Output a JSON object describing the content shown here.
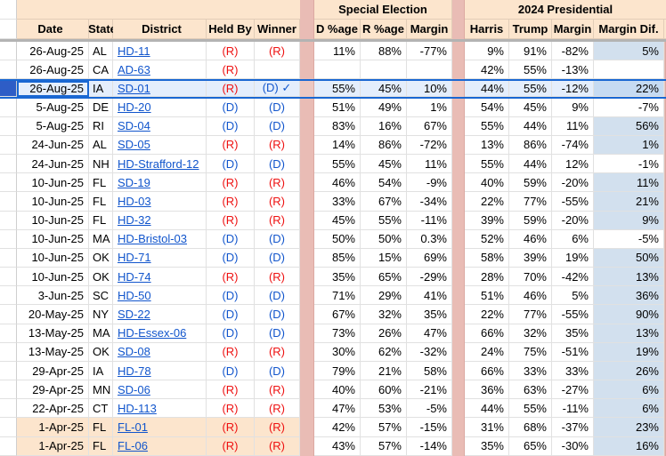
{
  "table": {
    "group_headers": {
      "special": "Special Election",
      "presidential": "2024 Presidential"
    },
    "columns": [
      "Date",
      "State",
      "District",
      "Held By",
      "Winner",
      "D %age",
      "R %age",
      "Margin",
      "Harris",
      "Trump",
      "Margin",
      "Margin Dif."
    ],
    "rows": [
      {
        "date": "26-Aug-25",
        "state": "AL",
        "district": "HD-11",
        "held": "(R)",
        "held_party": "R",
        "winner": "(R)",
        "winner_party": "R",
        "d": "11%",
        "r": "88%",
        "margin": "-77%",
        "harris": "9%",
        "trump": "91%",
        "pmargin": "-82%",
        "dif": "5%",
        "dif_hl": true,
        "bg": "white",
        "selected": false
      },
      {
        "date": "26-Aug-25",
        "state": "CA",
        "district": "AD-63",
        "held": "(R)",
        "held_party": "R",
        "winner": "",
        "winner_party": "",
        "d": "",
        "r": "",
        "margin": "",
        "harris": "42%",
        "trump": "55%",
        "pmargin": "-13%",
        "dif": "",
        "dif_hl": false,
        "bg": "white",
        "selected": false
      },
      {
        "date": "26-Aug-25",
        "state": "IA",
        "district": "SD-01",
        "held": "(R)",
        "held_party": "R",
        "winner": "(D) ✓",
        "winner_party": "D",
        "d": "55%",
        "r": "45%",
        "margin": "10%",
        "harris": "44%",
        "trump": "55%",
        "pmargin": "-12%",
        "dif": "22%",
        "dif_hl": true,
        "bg": "white",
        "selected": true
      },
      {
        "date": "5-Aug-25",
        "state": "DE",
        "district": "HD-20",
        "held": "(D)",
        "held_party": "D",
        "winner": "(D)",
        "winner_party": "D",
        "d": "51%",
        "r": "49%",
        "margin": "1%",
        "harris": "54%",
        "trump": "45%",
        "pmargin": "9%",
        "dif": "-7%",
        "dif_hl": false,
        "bg": "white",
        "selected": false
      },
      {
        "date": "5-Aug-25",
        "state": "RI",
        "district": "SD-04",
        "held": "(D)",
        "held_party": "D",
        "winner": "(D)",
        "winner_party": "D",
        "d": "83%",
        "r": "16%",
        "margin": "67%",
        "harris": "55%",
        "trump": "44%",
        "pmargin": "11%",
        "dif": "56%",
        "dif_hl": true,
        "bg": "white",
        "selected": false
      },
      {
        "date": "24-Jun-25",
        "state": "AL",
        "district": "SD-05",
        "held": "(R)",
        "held_party": "R",
        "winner": "(R)",
        "winner_party": "R",
        "d": "14%",
        "r": "86%",
        "margin": "-72%",
        "harris": "13%",
        "trump": "86%",
        "pmargin": "-74%",
        "dif": "1%",
        "dif_hl": true,
        "bg": "white",
        "selected": false
      },
      {
        "date": "24-Jun-25",
        "state": "NH",
        "district": "HD-Strafford-12",
        "held": "(D)",
        "held_party": "D",
        "winner": "(D)",
        "winner_party": "D",
        "d": "55%",
        "r": "45%",
        "margin": "11%",
        "harris": "55%",
        "trump": "44%",
        "pmargin": "12%",
        "dif": "-1%",
        "dif_hl": false,
        "bg": "white",
        "selected": false
      },
      {
        "date": "10-Jun-25",
        "state": "FL",
        "district": "SD-19",
        "held": "(R)",
        "held_party": "R",
        "winner": "(R)",
        "winner_party": "R",
        "d": "46%",
        "r": "54%",
        "margin": "-9%",
        "harris": "40%",
        "trump": "59%",
        "pmargin": "-20%",
        "dif": "11%",
        "dif_hl": true,
        "bg": "white",
        "selected": false
      },
      {
        "date": "10-Jun-25",
        "state": "FL",
        "district": "HD-03",
        "held": "(R)",
        "held_party": "R",
        "winner": "(R)",
        "winner_party": "R",
        "d": "33%",
        "r": "67%",
        "margin": "-34%",
        "harris": "22%",
        "trump": "77%",
        "pmargin": "-55%",
        "dif": "21%",
        "dif_hl": true,
        "bg": "white",
        "selected": false
      },
      {
        "date": "10-Jun-25",
        "state": "FL",
        "district": "HD-32",
        "held": "(R)",
        "held_party": "R",
        "winner": "(R)",
        "winner_party": "R",
        "d": "45%",
        "r": "55%",
        "margin": "-11%",
        "harris": "39%",
        "trump": "59%",
        "pmargin": "-20%",
        "dif": "9%",
        "dif_hl": true,
        "bg": "white",
        "selected": false
      },
      {
        "date": "10-Jun-25",
        "state": "MA",
        "district": "HD-Bristol-03",
        "held": "(D)",
        "held_party": "D",
        "winner": "(D)",
        "winner_party": "D",
        "d": "50%",
        "r": "50%",
        "margin": "0.3%",
        "harris": "52%",
        "trump": "46%",
        "pmargin": "6%",
        "dif": "-5%",
        "dif_hl": false,
        "bg": "white",
        "selected": false
      },
      {
        "date": "10-Jun-25",
        "state": "OK",
        "district": "HD-71",
        "held": "(D)",
        "held_party": "D",
        "winner": "(D)",
        "winner_party": "D",
        "d": "85%",
        "r": "15%",
        "margin": "69%",
        "harris": "58%",
        "trump": "39%",
        "pmargin": "19%",
        "dif": "50%",
        "dif_hl": true,
        "bg": "white",
        "selected": false
      },
      {
        "date": "10-Jun-25",
        "state": "OK",
        "district": "HD-74",
        "held": "(R)",
        "held_party": "R",
        "winner": "(R)",
        "winner_party": "R",
        "d": "35%",
        "r": "65%",
        "margin": "-29%",
        "harris": "28%",
        "trump": "70%",
        "pmargin": "-42%",
        "dif": "13%",
        "dif_hl": true,
        "bg": "white",
        "selected": false
      },
      {
        "date": "3-Jun-25",
        "state": "SC",
        "district": "HD-50",
        "held": "(D)",
        "held_party": "D",
        "winner": "(D)",
        "winner_party": "D",
        "d": "71%",
        "r": "29%",
        "margin": "41%",
        "harris": "51%",
        "trump": "46%",
        "pmargin": "5%",
        "dif": "36%",
        "dif_hl": true,
        "bg": "white",
        "selected": false
      },
      {
        "date": "20-May-25",
        "state": "NY",
        "district": "SD-22",
        "held": "(D)",
        "held_party": "D",
        "winner": "(D)",
        "winner_party": "D",
        "d": "67%",
        "r": "32%",
        "margin": "35%",
        "harris": "22%",
        "trump": "77%",
        "pmargin": "-55%",
        "dif": "90%",
        "dif_hl": true,
        "bg": "white",
        "selected": false
      },
      {
        "date": "13-May-25",
        "state": "MA",
        "district": "HD-Essex-06",
        "held": "(D)",
        "held_party": "D",
        "winner": "(D)",
        "winner_party": "D",
        "d": "73%",
        "r": "26%",
        "margin": "47%",
        "harris": "66%",
        "trump": "32%",
        "pmargin": "35%",
        "dif": "13%",
        "dif_hl": true,
        "bg": "white",
        "selected": false
      },
      {
        "date": "13-May-25",
        "state": "OK",
        "district": "SD-08",
        "held": "(R)",
        "held_party": "R",
        "winner": "(R)",
        "winner_party": "R",
        "d": "30%",
        "r": "62%",
        "margin": "-32%",
        "harris": "24%",
        "trump": "75%",
        "pmargin": "-51%",
        "dif": "19%",
        "dif_hl": true,
        "bg": "white",
        "selected": false
      },
      {
        "date": "29-Apr-25",
        "state": "IA",
        "district": "HD-78",
        "held": "(D)",
        "held_party": "D",
        "winner": "(D)",
        "winner_party": "D",
        "d": "79%",
        "r": "21%",
        "margin": "58%",
        "harris": "66%",
        "trump": "33%",
        "pmargin": "33%",
        "dif": "26%",
        "dif_hl": true,
        "bg": "white",
        "selected": false
      },
      {
        "date": "29-Apr-25",
        "state": "MN",
        "district": "SD-06",
        "held": "(R)",
        "held_party": "R",
        "winner": "(R)",
        "winner_party": "R",
        "d": "40%",
        "r": "60%",
        "margin": "-21%",
        "harris": "36%",
        "trump": "63%",
        "pmargin": "-27%",
        "dif": "6%",
        "dif_hl": true,
        "bg": "white",
        "selected": false
      },
      {
        "date": "22-Apr-25",
        "state": "CT",
        "district": "HD-113",
        "held": "(R)",
        "held_party": "R",
        "winner": "(R)",
        "winner_party": "R",
        "d": "47%",
        "r": "53%",
        "margin": "-5%",
        "harris": "44%",
        "trump": "55%",
        "pmargin": "-11%",
        "dif": "6%",
        "dif_hl": true,
        "bg": "white",
        "selected": false
      },
      {
        "date": "1-Apr-25",
        "state": "FL",
        "district": "FL-01",
        "held": "(R)",
        "held_party": "R",
        "winner": "(R)",
        "winner_party": "R",
        "d": "42%",
        "r": "57%",
        "margin": "-15%",
        "harris": "31%",
        "trump": "68%",
        "pmargin": "-37%",
        "dif": "23%",
        "dif_hl": true,
        "bg": "beige",
        "selected": false
      },
      {
        "date": "1-Apr-25",
        "state": "FL",
        "district": "FL-06",
        "held": "(R)",
        "held_party": "R",
        "winner": "(R)",
        "winner_party": "R",
        "d": "43%",
        "r": "57%",
        "margin": "-14%",
        "harris": "35%",
        "trump": "65%",
        "pmargin": "-30%",
        "dif": "16%",
        "dif_hl": true,
        "bg": "beige",
        "selected": false
      }
    ]
  },
  "colors": {
    "header_fill": "#fce5cd",
    "separator_fill": "#e9bcb5",
    "margin_dif_highlight": "#d2e0ee",
    "selection_fill": "#e4eefc",
    "selection_border": "#1967d2",
    "selected_row_header": "#2e5dc6",
    "republican_red": "#ee1111",
    "democrat_blue": "#1155cc",
    "link_blue": "#1155cc"
  }
}
